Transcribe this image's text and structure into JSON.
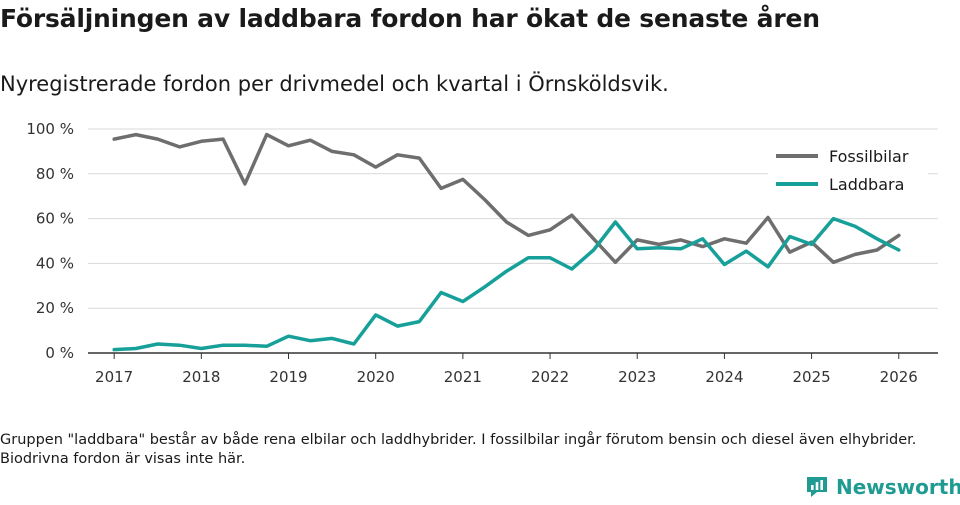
{
  "header": {
    "title": "Försäljningen av laddbara fordon har ökat de senaste åren",
    "subtitle": "Nyregistrerade fordon per drivmedel och kvartal i Örnsköldsvik."
  },
  "footnote": "Gruppen \"laddbara\" består av både rena elbilar och laddhybrider. I fossilbilar ingår förutom bensin och diesel även elhybrider. Biodrivna fordon är visas inte här.",
  "brand": {
    "name": "Newsworthy",
    "icon": "bar-chart-logo-icon",
    "color": "#1f9b92"
  },
  "chart_data": {
    "type": "line",
    "title": "Försäljningen av laddbara fordon har ökat de senaste åren",
    "subtitle": "Nyregistrerade fordon per drivmedel och kvartal i Örnsköldsvik.",
    "xlabel": "",
    "ylabel": "",
    "xlim": [
      2016.7,
      2026.45
    ],
    "ylim": [
      0,
      100
    ],
    "x_ticks": [
      2017,
      2018,
      2019,
      2020,
      2021,
      2022,
      2023,
      2024,
      2025,
      2026
    ],
    "x_tick_labels": [
      "2017",
      "2018",
      "2019",
      "2020",
      "2021",
      "2022",
      "2023",
      "2024",
      "2025",
      "2026"
    ],
    "y_ticks": [
      0,
      20,
      40,
      60,
      80,
      100
    ],
    "y_tick_labels": [
      "0 %",
      "20 %",
      "40 %",
      "60 %",
      "80 %",
      "100 %"
    ],
    "grid": "horizontal",
    "legend_position": "top-right",
    "x": [
      2017.0,
      2017.25,
      2017.5,
      2017.75,
      2018.0,
      2018.25,
      2018.5,
      2018.75,
      2019.0,
      2019.25,
      2019.5,
      2019.75,
      2020.0,
      2020.25,
      2020.5,
      2020.75,
      2021.0,
      2021.25,
      2021.5,
      2021.75,
      2022.0,
      2022.25,
      2022.5,
      2022.75,
      2023.0,
      2023.25,
      2023.5,
      2023.75,
      2024.0,
      2024.25,
      2024.5,
      2024.75,
      2025.0,
      2025.25,
      2025.5,
      2025.75,
      2026.0
    ],
    "series": [
      {
        "name": "Fossilbilar",
        "color": "#6e6e6e",
        "values": [
          95.5,
          97.5,
          95.5,
          92,
          94.5,
          95.5,
          75.5,
          97.5,
          92.5,
          95,
          90,
          88.5,
          83,
          88.5,
          87,
          73.5,
          77.5,
          68.5,
          58.5,
          52.5,
          55,
          61.5,
          51,
          40.5,
          50.5,
          48.5,
          50.5,
          47.5,
          51,
          49,
          60.5,
          45,
          49.5,
          40.5,
          44,
          46,
          52.5
        ]
      },
      {
        "name": "Laddbara",
        "color": "#16a099",
        "values": [
          1.5,
          2,
          4,
          3.5,
          2,
          3.5,
          3.5,
          3,
          7.5,
          5.5,
          6.5,
          4,
          17,
          12,
          14,
          27,
          23,
          29.5,
          36.5,
          42.5,
          42.5,
          37.5,
          46,
          58.5,
          46.5,
          47,
          46.5,
          51,
          39.5,
          45.5,
          38.5,
          52,
          48.5,
          60,
          56.5,
          51,
          46
        ]
      }
    ]
  }
}
